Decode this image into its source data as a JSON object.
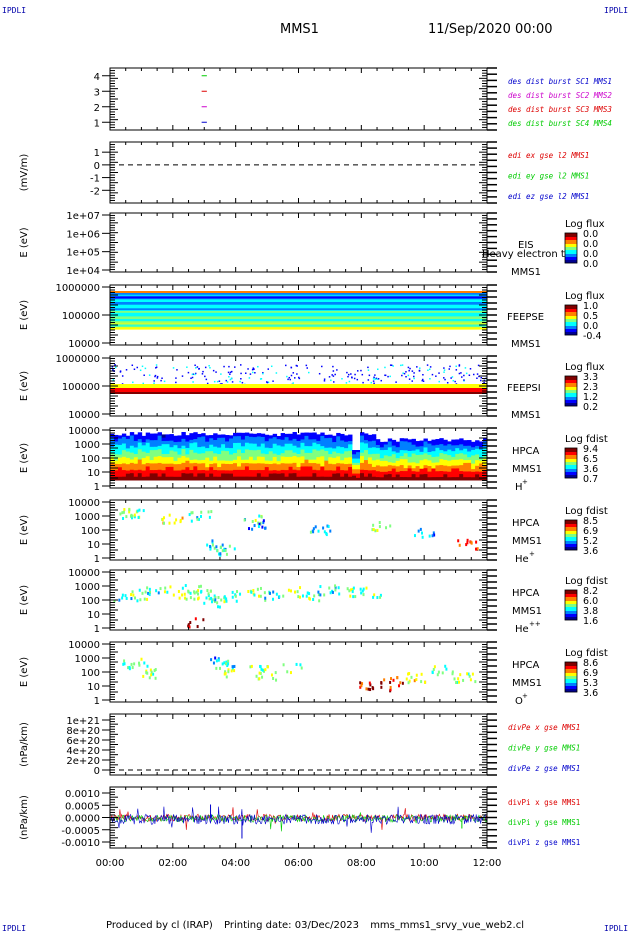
{
  "corner_label": "IPDLI",
  "header": {
    "spacecraft": "MMS1",
    "datetime": "11/Sep/2020 00:00"
  },
  "footer": {
    "producer": "Produced by cl (IRAP)",
    "printed": "Printing date: 03/Dec/2023",
    "file": "mms_mms1_srvy_vue_web2.cl"
  },
  "colors": {
    "mms1": "#0000cc",
    "mms2": "#cc00cc",
    "mms3": "#dd0000",
    "mms4": "#00cc00",
    "x": "#dd0000",
    "y": "#00cc00",
    "z": "#0000cc"
  },
  "chart_data": [
    {
      "type": "scatter",
      "id": "des-burst",
      "ylim": [
        0.5,
        4.5
      ],
      "yticks": [
        "1",
        "2",
        "3",
        "4"
      ],
      "series": [
        {
          "name": "des dist burst SC1 MMS1",
          "color": "#0000cc",
          "x": [
            "02:55",
            "03:05"
          ],
          "y": [
            1,
            1
          ]
        },
        {
          "name": "des dist burst SC2 MMS2",
          "color": "#cc00cc",
          "x": [
            "02:55",
            "03:05"
          ],
          "y": [
            2,
            2
          ]
        },
        {
          "name": "des dist burst SC3 MMS3",
          "color": "#dd0000",
          "x": [
            "02:55",
            "03:05"
          ],
          "y": [
            3,
            3
          ]
        },
        {
          "name": "des dist burst SC4 MMS4",
          "color": "#00cc00",
          "x": [
            "02:55",
            "03:05"
          ],
          "y": [
            4,
            4
          ]
        }
      ]
    },
    {
      "type": "line",
      "id": "edi-e",
      "ylabel": "(mV/m)",
      "ylim": [
        -3,
        1.8
      ],
      "yticks": [
        "1",
        "0",
        "-1",
        "-2"
      ],
      "series": [
        {
          "name": "edi ex gse l2 MMS1",
          "color": "#dd0000",
          "values": []
        },
        {
          "name": "edi ey gse l2 MMS1",
          "color": "#00cc00",
          "values": []
        },
        {
          "name": "edi ez gse l2 MMS1",
          "color": "#0000cc",
          "values": []
        }
      ]
    },
    {
      "type": "heatmap",
      "id": "eis",
      "ylabel": "E (eV)",
      "yticks": [
        "1e+07",
        "1e+06",
        "1e+05",
        "1e+04"
      ],
      "instrument": "EIS",
      "sc": "MMS1",
      "overlay": "Heavy electron to",
      "cbar_title": "Log flux",
      "cbar_ticks": [
        "0.0",
        "0.0",
        "0.0",
        "0.0"
      ]
    },
    {
      "type": "heatmap",
      "id": "feeps-e",
      "ylabel": "E (eV)",
      "yticks": [
        "1000000",
        "100000",
        "10000"
      ],
      "instrument": "FEEPSE",
      "sc": "MMS1",
      "cbar_title": "Log flux",
      "cbar_ticks": [
        "1.0",
        "0.5",
        "0.0",
        "-0.4"
      ]
    },
    {
      "type": "heatmap",
      "id": "feeps-i",
      "ylabel": "E (eV)",
      "yticks": [
        "1000000",
        "100000",
        "10000"
      ],
      "instrument": "FEEPSI",
      "sc": "MMS1",
      "cbar_title": "Log flux",
      "cbar_ticks": [
        "3.3",
        "2.3",
        "1.2",
        "0.2"
      ]
    },
    {
      "type": "heatmap",
      "id": "hpca-h",
      "ylabel": "E (eV)",
      "yticks": [
        "10000",
        "1000",
        "100",
        "10",
        "1"
      ],
      "instrument": "HPCA",
      "sc": "MMS1",
      "species": "H",
      "species_sup": "+",
      "cbar_title": "Log fdist",
      "cbar_ticks": [
        "9.4",
        "6.5",
        "3.6",
        "0.7"
      ]
    },
    {
      "type": "heatmap",
      "id": "hpca-he",
      "ylabel": "E (eV)",
      "yticks": [
        "10000",
        "1000",
        "100",
        "10",
        "1"
      ],
      "instrument": "HPCA",
      "sc": "MMS1",
      "species": "He",
      "species_sup": "+",
      "cbar_title": "Log fdist",
      "cbar_ticks": [
        "8.5",
        "6.9",
        "5.2",
        "3.6"
      ]
    },
    {
      "type": "heatmap",
      "id": "hpca-hepp",
      "ylabel": "E (eV)",
      "yticks": [
        "10000",
        "1000",
        "100",
        "10",
        "1"
      ],
      "instrument": "HPCA",
      "sc": "MMS1",
      "species": "He",
      "species_sup": "++",
      "cbar_title": "Log fdist",
      "cbar_ticks": [
        "8.2",
        "6.0",
        "3.8",
        "1.6"
      ]
    },
    {
      "type": "heatmap",
      "id": "hpca-o",
      "ylabel": "E (eV)",
      "yticks": [
        "10000",
        "1000",
        "100",
        "10",
        "1"
      ],
      "instrument": "HPCA",
      "sc": "MMS1",
      "species": "O",
      "species_sup": "+",
      "cbar_title": "Log fdist",
      "cbar_ticks": [
        "8.6",
        "6.9",
        "5.3",
        "3.6"
      ]
    },
    {
      "type": "line",
      "id": "divpe",
      "ylabel": "(nPa/km)",
      "ylim": [
        -5e+19,
        1.12e+21
      ],
      "yticks": [
        "1e+21",
        "8e+20",
        "6e+20",
        "4e+20",
        "2e+20",
        "0"
      ],
      "series": [
        {
          "name": "divPe x gse MMS1",
          "color": "#dd0000",
          "values": []
        },
        {
          "name": "divPe y gse MMS1",
          "color": "#00cc00",
          "values": []
        },
        {
          "name": "divPe z gse MMS1",
          "color": "#0000cc",
          "values": []
        }
      ]
    },
    {
      "type": "line",
      "id": "divpi",
      "ylabel": "(nPa/km)",
      "ylim": [
        -0.0013,
        0.0013
      ],
      "yticks": [
        "0.0010",
        "0.0005",
        "0.0000",
        "-0.0005",
        "-0.0010"
      ],
      "xticks": [
        "00:00",
        "02:00",
        "04:00",
        "06:00",
        "08:00",
        "10:00",
        "12:00"
      ],
      "series": [
        {
          "name": "divPi x gse MMS1",
          "color": "#dd0000"
        },
        {
          "name": "divPi y gse MMS1",
          "color": "#00cc00"
        },
        {
          "name": "divPi z gse MMS1",
          "color": "#0000cc"
        }
      ]
    }
  ]
}
